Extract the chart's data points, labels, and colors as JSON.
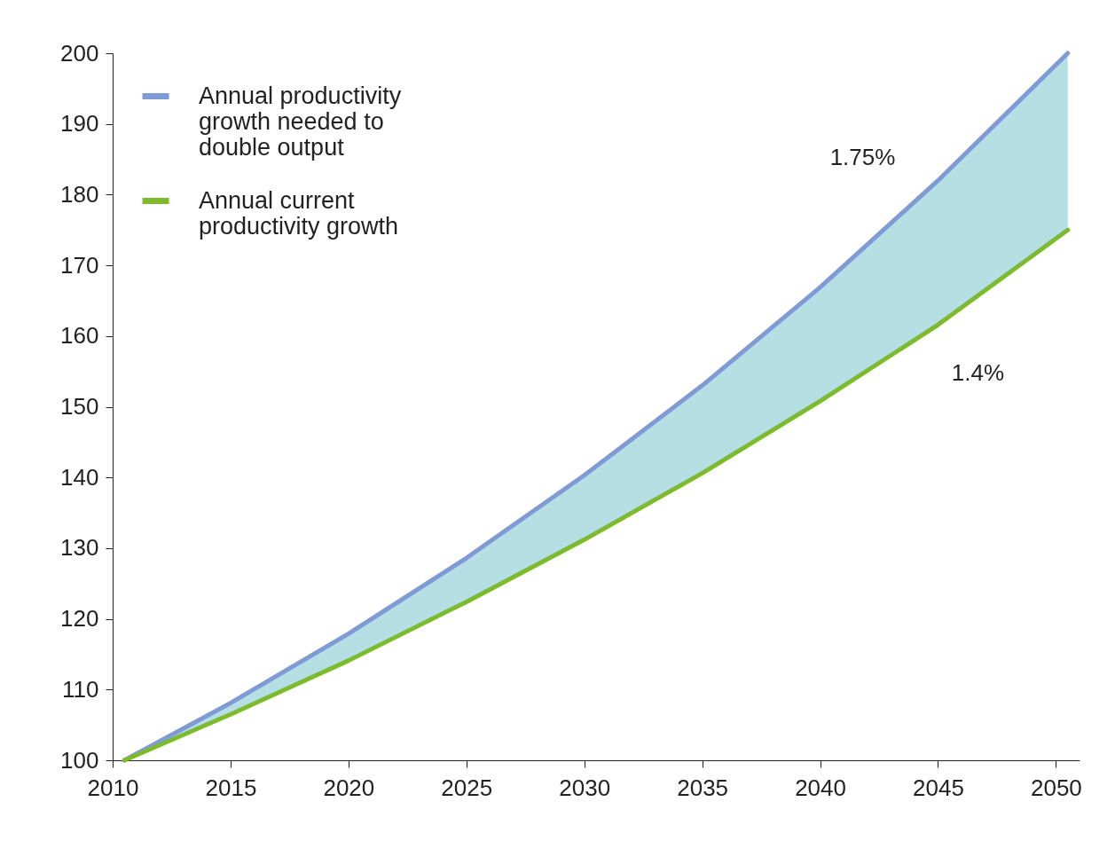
{
  "chart_data": {
    "type": "line",
    "x": [
      2010.5,
      2015,
      2020,
      2025,
      2030,
      2035,
      2040,
      2045,
      2050.5
    ],
    "series": [
      {
        "name": "Annual productivity growth needed to double output",
        "color": "#7f9bd6",
        "values": [
          100,
          108.1,
          117.9,
          128.6,
          140.3,
          153.0,
          166.9,
          182.0,
          200
        ],
        "lower": [
          100,
          106.5,
          114.1,
          122.4,
          131.2,
          140.6,
          150.8,
          161.6,
          175
        ],
        "upper": [
          100,
          108.1,
          117.9,
          128.6,
          140.3,
          153.0,
          166.9,
          182.0,
          200
        ]
      },
      {
        "name": "Annual current productivity growth",
        "color": "#7dba2c",
        "values": [
          100,
          106.5,
          114.1,
          122.4,
          131.2,
          140.6,
          150.8,
          161.6,
          175
        ]
      }
    ],
    "xlim": [
      2010,
      2051
    ],
    "xticks": [
      2010,
      2015,
      2020,
      2025,
      2030,
      2035,
      2040,
      2045,
      2050
    ],
    "ylim": [
      100,
      200
    ],
    "yticks": [
      100,
      110,
      120,
      130,
      140,
      150,
      160,
      170,
      180,
      190,
      200
    ],
    "annotations": [
      "1.75%",
      "1.4%"
    ],
    "grid": false,
    "legend": "top left",
    "marker": "none",
    "line_style": "solid"
  }
}
